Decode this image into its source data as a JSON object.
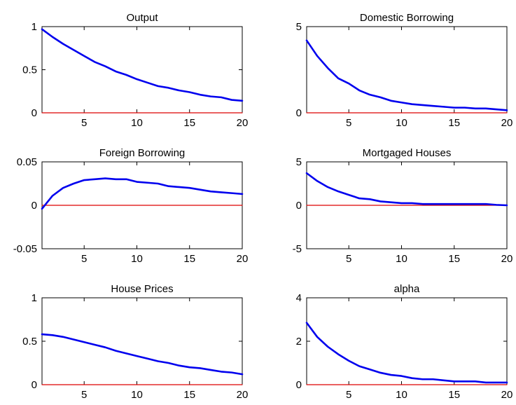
{
  "chart_data": [
    {
      "type": "line",
      "title": "Output",
      "xlabel": "",
      "ylabel": "",
      "xlim": [
        1,
        20
      ],
      "ylim": [
        0,
        1
      ],
      "xticks": [
        5,
        10,
        15,
        20
      ],
      "xtick_labels": [
        "5",
        "10",
        "15",
        "20"
      ],
      "yticks": [
        0,
        0.5,
        1
      ],
      "ytick_labels": [
        "0",
        "0.5",
        "1"
      ],
      "grid": false,
      "series": [
        {
          "color": "#0000ee",
          "x": [
            1,
            2,
            3,
            4,
            5,
            6,
            7,
            8,
            9,
            10,
            11,
            12,
            13,
            14,
            15,
            16,
            17,
            18,
            19,
            20
          ],
          "values": [
            0.97,
            0.88,
            0.8,
            0.73,
            0.66,
            0.59,
            0.54,
            0.48,
            0.44,
            0.39,
            0.35,
            0.31,
            0.29,
            0.26,
            0.24,
            0.21,
            0.19,
            0.18,
            0.15,
            0.14
          ]
        },
        {
          "color": "#dd0000",
          "x": [
            1,
            20
          ],
          "values": [
            0,
            0
          ]
        }
      ]
    },
    {
      "type": "line",
      "title": "Domestic Borrowing",
      "xlabel": "",
      "ylabel": "",
      "xlim": [
        1,
        20
      ],
      "ylim": [
        0,
        5
      ],
      "xticks": [
        5,
        10,
        15,
        20
      ],
      "xtick_labels": [
        "5",
        "10",
        "15",
        "20"
      ],
      "yticks": [
        0,
        5
      ],
      "ytick_labels": [
        "0",
        "5"
      ],
      "grid": false,
      "series": [
        {
          "color": "#0000ee",
          "x": [
            1,
            2,
            3,
            4,
            5,
            6,
            7,
            8,
            9,
            10,
            11,
            12,
            13,
            14,
            15,
            16,
            17,
            18,
            19,
            20
          ],
          "values": [
            4.2,
            3.3,
            2.6,
            2.0,
            1.7,
            1.3,
            1.05,
            0.9,
            0.7,
            0.6,
            0.5,
            0.45,
            0.4,
            0.35,
            0.3,
            0.3,
            0.25,
            0.25,
            0.2,
            0.15
          ]
        },
        {
          "color": "#dd0000",
          "x": [
            1,
            20
          ],
          "values": [
            0,
            0
          ]
        }
      ]
    },
    {
      "type": "line",
      "title": "Foreign Borrowing",
      "xlabel": "",
      "ylabel": "",
      "xlim": [
        1,
        20
      ],
      "ylim": [
        -0.05,
        0.05
      ],
      "xticks": [
        5,
        10,
        15,
        20
      ],
      "xtick_labels": [
        "5",
        "10",
        "15",
        "20"
      ],
      "yticks": [
        -0.05,
        0,
        0.05
      ],
      "ytick_labels": [
        "-0.05",
        "0",
        "0.05"
      ],
      "grid": false,
      "series": [
        {
          "color": "#0000ee",
          "x": [
            1,
            2,
            3,
            4,
            5,
            6,
            7,
            8,
            9,
            10,
            11,
            12,
            13,
            14,
            15,
            16,
            17,
            18,
            19,
            20
          ],
          "values": [
            -0.004,
            0.011,
            0.02,
            0.025,
            0.029,
            0.03,
            0.031,
            0.03,
            0.03,
            0.027,
            0.026,
            0.025,
            0.022,
            0.021,
            0.02,
            0.018,
            0.016,
            0.015,
            0.014,
            0.013
          ]
        },
        {
          "color": "#dd0000",
          "x": [
            1,
            20
          ],
          "values": [
            0,
            0
          ]
        }
      ]
    },
    {
      "type": "line",
      "title": "Mortgaged Houses",
      "xlabel": "",
      "ylabel": "",
      "xlim": [
        1,
        20
      ],
      "ylim": [
        -5,
        5
      ],
      "xticks": [
        5,
        10,
        15,
        20
      ],
      "xtick_labels": [
        "5",
        "10",
        "15",
        "20"
      ],
      "yticks": [
        -5,
        0,
        5
      ],
      "ytick_labels": [
        "-5",
        "0",
        "5"
      ],
      "grid": false,
      "series": [
        {
          "color": "#0000ee",
          "x": [
            1,
            2,
            3,
            4,
            5,
            6,
            7,
            8,
            9,
            10,
            11,
            12,
            13,
            14,
            15,
            16,
            17,
            18,
            19,
            20
          ],
          "values": [
            3.7,
            2.8,
            2.1,
            1.6,
            1.2,
            0.8,
            0.7,
            0.45,
            0.35,
            0.25,
            0.25,
            0.15,
            0.15,
            0.15,
            0.15,
            0.15,
            0.15,
            0.15,
            0.05,
            0.0
          ]
        },
        {
          "color": "#dd0000",
          "x": [
            1,
            20
          ],
          "values": [
            0,
            0
          ]
        }
      ]
    },
    {
      "type": "line",
      "title": "House Prices",
      "xlabel": "",
      "ylabel": "",
      "xlim": [
        1,
        20
      ],
      "ylim": [
        0,
        1
      ],
      "xticks": [
        5,
        10,
        15,
        20
      ],
      "xtick_labels": [
        "5",
        "10",
        "15",
        "20"
      ],
      "yticks": [
        0,
        0.5,
        1
      ],
      "ytick_labels": [
        "0",
        "0.5",
        "1"
      ],
      "grid": false,
      "series": [
        {
          "color": "#0000ee",
          "x": [
            1,
            2,
            3,
            4,
            5,
            6,
            7,
            8,
            9,
            10,
            11,
            12,
            13,
            14,
            15,
            16,
            17,
            18,
            19,
            20
          ],
          "values": [
            0.58,
            0.57,
            0.55,
            0.52,
            0.49,
            0.46,
            0.43,
            0.39,
            0.36,
            0.33,
            0.3,
            0.27,
            0.25,
            0.22,
            0.2,
            0.19,
            0.17,
            0.15,
            0.14,
            0.12
          ]
        },
        {
          "color": "#dd0000",
          "x": [
            1,
            20
          ],
          "values": [
            0,
            0
          ]
        }
      ]
    },
    {
      "type": "line",
      "title": "alpha",
      "xlabel": "",
      "ylabel": "",
      "xlim": [
        1,
        20
      ],
      "ylim": [
        0,
        4
      ],
      "xticks": [
        5,
        10,
        15,
        20
      ],
      "xtick_labels": [
        "5",
        "10",
        "15",
        "20"
      ],
      "yticks": [
        0,
        2,
        4
      ],
      "ytick_labels": [
        "0",
        "2",
        "4"
      ],
      "grid": false,
      "series": [
        {
          "color": "#0000ee",
          "x": [
            1,
            2,
            3,
            4,
            5,
            6,
            7,
            8,
            9,
            10,
            11,
            12,
            13,
            14,
            15,
            16,
            17,
            18,
            19,
            20
          ],
          "values": [
            2.85,
            2.2,
            1.75,
            1.4,
            1.1,
            0.85,
            0.7,
            0.55,
            0.45,
            0.4,
            0.3,
            0.25,
            0.25,
            0.2,
            0.15,
            0.15,
            0.15,
            0.1,
            0.1,
            0.1
          ]
        },
        {
          "color": "#dd0000",
          "x": [
            1,
            20
          ],
          "values": [
            0,
            0
          ]
        }
      ]
    }
  ]
}
